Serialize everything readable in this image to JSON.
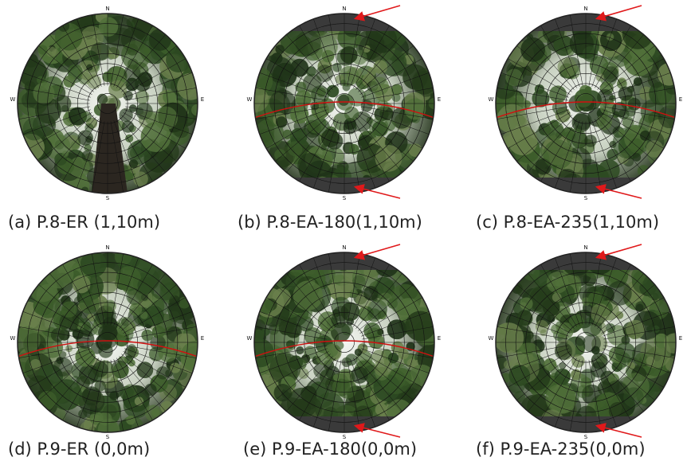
{
  "panels": [
    {
      "caption": "(a) P.8-ER (1,10m)"
    },
    {
      "caption": "(b) P.8-EA-180(1,10m)"
    },
    {
      "caption": "(c) P.8-EA-235(1,10m)"
    },
    {
      "caption": "(d) P.9-ER (0,0m)"
    },
    {
      "caption": "(e) P.9-EA-180(0,0m)"
    },
    {
      "caption": "(f) P.9-EA-235(0,0m)"
    }
  ],
  "compass": {
    "north": "N",
    "south": "S",
    "east": "E",
    "west": "W"
  }
}
